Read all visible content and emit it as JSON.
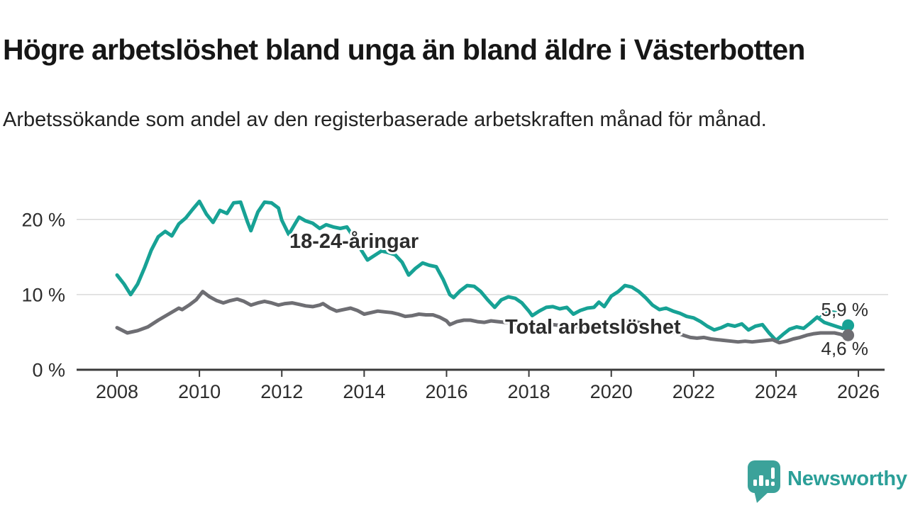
{
  "header": {
    "title": "Högre arbetslöshet bland unga än bland äldre i Västerbotten",
    "subtitle": "Arbetssökande som andel av den registerbaserade arbetskraften månad för månad."
  },
  "chart_data": {
    "type": "line",
    "title": "Högre arbetslöshet bland unga än bland äldre i Västerbotten",
    "xlabel": "",
    "ylabel": "Arbetssökande som andel av den registerbaserade arbetskraften",
    "unit": "%",
    "grid": "horizontal",
    "x_axis": {
      "ticks": [
        2008,
        2010,
        2012,
        2014,
        2016,
        2018,
        2020,
        2022,
        2024,
        2026
      ],
      "range": [
        2007.0,
        2026.6
      ]
    },
    "y_axis": {
      "ticks": [
        {
          "value": 0,
          "label": "0 %"
        },
        {
          "value": 10,
          "label": "10 %"
        },
        {
          "value": 20,
          "label": "20 %"
        }
      ],
      "range": [
        0,
        24
      ]
    },
    "series": [
      {
        "id": "young",
        "name": "18-24-åringar",
        "color": "#17a295",
        "latest_value": 5.9,
        "latest_label": "5,9 %",
        "points": [
          [
            2008.0,
            12.6
          ],
          [
            2008.17,
            11.4
          ],
          [
            2008.33,
            10.0
          ],
          [
            2008.5,
            11.4
          ],
          [
            2008.67,
            13.6
          ],
          [
            2008.83,
            15.9
          ],
          [
            2009.0,
            17.7
          ],
          [
            2009.17,
            18.4
          ],
          [
            2009.33,
            17.8
          ],
          [
            2009.5,
            19.4
          ],
          [
            2009.67,
            20.2
          ],
          [
            2009.83,
            21.3
          ],
          [
            2010.0,
            22.4
          ],
          [
            2010.17,
            20.7
          ],
          [
            2010.33,
            19.6
          ],
          [
            2010.5,
            21.2
          ],
          [
            2010.67,
            20.8
          ],
          [
            2010.83,
            22.2
          ],
          [
            2011.0,
            22.3
          ],
          [
            2011.17,
            19.6
          ],
          [
            2011.25,
            18.5
          ],
          [
            2011.42,
            21.0
          ],
          [
            2011.58,
            22.3
          ],
          [
            2011.75,
            22.2
          ],
          [
            2011.92,
            21.5
          ],
          [
            2012.0,
            19.9
          ],
          [
            2012.17,
            18.0
          ],
          [
            2012.33,
            19.5
          ],
          [
            2012.42,
            20.3
          ],
          [
            2012.58,
            19.8
          ],
          [
            2012.75,
            19.5
          ],
          [
            2012.92,
            18.8
          ],
          [
            2013.08,
            19.3
          ],
          [
            2013.25,
            19.0
          ],
          [
            2013.42,
            18.8
          ],
          [
            2013.58,
            19.0
          ],
          [
            2013.75,
            17.6
          ],
          [
            2013.92,
            16.0
          ],
          [
            2014.08,
            14.6
          ],
          [
            2014.25,
            15.2
          ],
          [
            2014.42,
            15.8
          ],
          [
            2014.58,
            15.6
          ],
          [
            2014.75,
            15.3
          ],
          [
            2014.92,
            14.3
          ],
          [
            2015.08,
            12.6
          ],
          [
            2015.25,
            13.5
          ],
          [
            2015.42,
            14.2
          ],
          [
            2015.58,
            13.9
          ],
          [
            2015.75,
            13.7
          ],
          [
            2015.92,
            12.0
          ],
          [
            2016.08,
            10.0
          ],
          [
            2016.17,
            9.6
          ],
          [
            2016.33,
            10.5
          ],
          [
            2016.5,
            11.2
          ],
          [
            2016.67,
            11.1
          ],
          [
            2016.83,
            10.4
          ],
          [
            2017.0,
            9.3
          ],
          [
            2017.17,
            8.3
          ],
          [
            2017.33,
            9.3
          ],
          [
            2017.5,
            9.7
          ],
          [
            2017.67,
            9.5
          ],
          [
            2017.83,
            8.9
          ],
          [
            2018.0,
            7.8
          ],
          [
            2018.08,
            7.2
          ],
          [
            2018.25,
            7.8
          ],
          [
            2018.42,
            8.3
          ],
          [
            2018.58,
            8.4
          ],
          [
            2018.75,
            8.1
          ],
          [
            2018.92,
            8.3
          ],
          [
            2019.08,
            7.4
          ],
          [
            2019.25,
            7.9
          ],
          [
            2019.42,
            8.2
          ],
          [
            2019.58,
            8.3
          ],
          [
            2019.7,
            9.0
          ],
          [
            2019.83,
            8.4
          ],
          [
            2020.0,
            9.8
          ],
          [
            2020.17,
            10.4
          ],
          [
            2020.33,
            11.2
          ],
          [
            2020.5,
            11.0
          ],
          [
            2020.67,
            10.4
          ],
          [
            2020.83,
            9.6
          ],
          [
            2021.0,
            8.6
          ],
          [
            2021.17,
            8.0
          ],
          [
            2021.33,
            8.2
          ],
          [
            2021.5,
            7.8
          ],
          [
            2021.67,
            7.5
          ],
          [
            2021.83,
            7.1
          ],
          [
            2022.0,
            6.9
          ],
          [
            2022.17,
            6.4
          ],
          [
            2022.33,
            5.8
          ],
          [
            2022.5,
            5.3
          ],
          [
            2022.67,
            5.6
          ],
          [
            2022.83,
            6.0
          ],
          [
            2023.0,
            5.8
          ],
          [
            2023.17,
            6.1
          ],
          [
            2023.33,
            5.3
          ],
          [
            2023.5,
            5.8
          ],
          [
            2023.67,
            6.0
          ],
          [
            2023.83,
            4.9
          ],
          [
            2024.0,
            3.9
          ],
          [
            2024.17,
            4.7
          ],
          [
            2024.33,
            5.4
          ],
          [
            2024.5,
            5.7
          ],
          [
            2024.67,
            5.5
          ],
          [
            2024.83,
            6.2
          ],
          [
            2025.0,
            7.0
          ],
          [
            2025.17,
            6.3
          ],
          [
            2025.33,
            6.0
          ],
          [
            2025.5,
            5.7
          ],
          [
            2025.62,
            5.5
          ],
          [
            2025.75,
            5.9
          ]
        ]
      },
      {
        "id": "total",
        "name": "Total arbetslöshet",
        "color": "#6e6e73",
        "latest_value": 4.6,
        "latest_label": "4,6 %",
        "points": [
          [
            2008.0,
            5.6
          ],
          [
            2008.25,
            4.9
          ],
          [
            2008.5,
            5.2
          ],
          [
            2008.75,
            5.7
          ],
          [
            2009.0,
            6.6
          ],
          [
            2009.25,
            7.4
          ],
          [
            2009.5,
            8.2
          ],
          [
            2009.58,
            8.0
          ],
          [
            2009.75,
            8.6
          ],
          [
            2009.92,
            9.3
          ],
          [
            2010.08,
            10.4
          ],
          [
            2010.25,
            9.7
          ],
          [
            2010.42,
            9.2
          ],
          [
            2010.58,
            8.9
          ],
          [
            2010.75,
            9.2
          ],
          [
            2010.92,
            9.4
          ],
          [
            2011.08,
            9.1
          ],
          [
            2011.25,
            8.6
          ],
          [
            2011.42,
            8.9
          ],
          [
            2011.58,
            9.1
          ],
          [
            2011.75,
            8.9
          ],
          [
            2011.92,
            8.6
          ],
          [
            2012.08,
            8.8
          ],
          [
            2012.25,
            8.9
          ],
          [
            2012.42,
            8.7
          ],
          [
            2012.58,
            8.5
          ],
          [
            2012.75,
            8.4
          ],
          [
            2012.92,
            8.6
          ],
          [
            2013.0,
            8.8
          ],
          [
            2013.17,
            8.2
          ],
          [
            2013.33,
            7.8
          ],
          [
            2013.5,
            8.0
          ],
          [
            2013.67,
            8.2
          ],
          [
            2013.83,
            7.9
          ],
          [
            2014.0,
            7.4
          ],
          [
            2014.17,
            7.6
          ],
          [
            2014.33,
            7.8
          ],
          [
            2014.5,
            7.7
          ],
          [
            2014.67,
            7.6
          ],
          [
            2014.83,
            7.4
          ],
          [
            2015.0,
            7.1
          ],
          [
            2015.17,
            7.2
          ],
          [
            2015.33,
            7.4
          ],
          [
            2015.5,
            7.3
          ],
          [
            2015.67,
            7.3
          ],
          [
            2015.83,
            7.0
          ],
          [
            2016.0,
            6.5
          ],
          [
            2016.08,
            6.0
          ],
          [
            2016.25,
            6.4
          ],
          [
            2016.42,
            6.6
          ],
          [
            2016.58,
            6.6
          ],
          [
            2016.75,
            6.4
          ],
          [
            2016.92,
            6.3
          ],
          [
            2017.08,
            6.5
          ],
          [
            2017.25,
            6.4
          ],
          [
            2017.42,
            6.3
          ],
          [
            2017.58,
            6.3
          ],
          [
            2017.75,
            6.2
          ],
          [
            2017.92,
            6.1
          ],
          [
            2018.08,
            6.0
          ],
          [
            2018.25,
            6.1
          ],
          [
            2018.42,
            6.1
          ],
          [
            2018.58,
            6.0
          ],
          [
            2018.75,
            5.9
          ],
          [
            2018.92,
            5.8
          ],
          [
            2019.08,
            5.7
          ],
          [
            2019.25,
            5.7
          ],
          [
            2019.42,
            5.6
          ],
          [
            2019.58,
            5.6
          ],
          [
            2019.75,
            5.5
          ],
          [
            2019.92,
            5.6
          ],
          [
            2020.08,
            5.8
          ],
          [
            2020.25,
            6.2
          ],
          [
            2020.42,
            6.4
          ],
          [
            2020.58,
            6.4
          ],
          [
            2020.75,
            6.2
          ],
          [
            2020.92,
            6.0
          ],
          [
            2021.08,
            5.7
          ],
          [
            2021.25,
            5.4
          ],
          [
            2021.42,
            5.1
          ],
          [
            2021.58,
            4.9
          ],
          [
            2021.75,
            4.6
          ],
          [
            2021.92,
            4.3
          ],
          [
            2022.08,
            4.2
          ],
          [
            2022.25,
            4.3
          ],
          [
            2022.42,
            4.1
          ],
          [
            2022.58,
            4.0
          ],
          [
            2022.75,
            3.9
          ],
          [
            2022.92,
            3.8
          ],
          [
            2023.08,
            3.7
          ],
          [
            2023.25,
            3.8
          ],
          [
            2023.42,
            3.7
          ],
          [
            2023.58,
            3.8
          ],
          [
            2023.75,
            3.9
          ],
          [
            2023.92,
            4.0
          ],
          [
            2024.08,
            3.6
          ],
          [
            2024.25,
            3.8
          ],
          [
            2024.42,
            4.1
          ],
          [
            2024.58,
            4.3
          ],
          [
            2024.75,
            4.6
          ],
          [
            2024.92,
            4.8
          ],
          [
            2025.08,
            4.9
          ],
          [
            2025.25,
            4.9
          ],
          [
            2025.42,
            4.9
          ],
          [
            2025.58,
            4.7
          ],
          [
            2025.67,
            4.4
          ],
          [
            2025.75,
            4.6
          ]
        ]
      }
    ]
  },
  "footer": {
    "brand": "Newsworthy"
  }
}
